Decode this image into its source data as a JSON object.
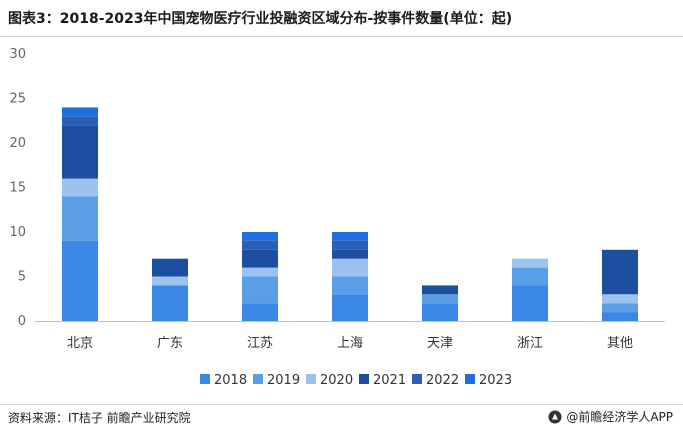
{
  "title": "图表3：2018-2023年中国宠物医疗行业投融资区域分布-按事件数量(单位：起)",
  "source": "资料来源：IT桔子 前瞻产业研究院",
  "brand": {
    "text": "@前瞻经济学人APP",
    "logo_icon": "qianzhan-logo-icon"
  },
  "chart_data": {
    "type": "bar",
    "stacked": true,
    "categories": [
      "北京",
      "广东",
      "江苏",
      "上海",
      "天津",
      "浙江",
      "其他"
    ],
    "ylim": [
      0,
      30
    ],
    "yticks": [
      0,
      5,
      10,
      15,
      20,
      25,
      30
    ],
    "grid": false,
    "legend_position": "bottom",
    "series": [
      {
        "name": "2018",
        "color": "#3a87e8",
        "values": [
          9,
          4,
          2,
          3,
          2,
          4,
          1
        ]
      },
      {
        "name": "2019",
        "color": "#5a9ee6",
        "values": [
          5,
          0,
          3,
          2,
          1,
          2,
          1
        ]
      },
      {
        "name": "2020",
        "color": "#9cc3f0",
        "values": [
          2,
          1,
          1,
          2,
          0,
          1,
          1
        ]
      },
      {
        "name": "2021",
        "color": "#1c4fa0",
        "values": [
          6,
          2,
          2,
          1,
          1,
          0,
          5
        ]
      },
      {
        "name": "2022",
        "color": "#2a5fb5",
        "values": [
          1,
          0,
          1,
          1,
          0,
          0,
          0
        ]
      },
      {
        "name": "2023",
        "color": "#1f6fe0",
        "values": [
          1,
          0,
          1,
          1,
          0,
          0,
          0
        ]
      }
    ]
  }
}
